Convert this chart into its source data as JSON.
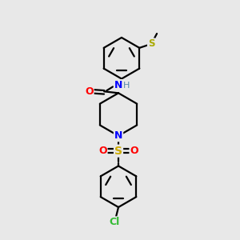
{
  "background_color": "#e8e8e8",
  "bond_color": "#000000",
  "atom_colors": {
    "N": "#0000ff",
    "N_H": "#5588aa",
    "O": "#ff0000",
    "S_sulfonyl": "#ccaa00",
    "S_thioether": "#aaaa00",
    "Cl": "#33bb33",
    "H": "#5588aa",
    "C": "#000000"
  },
  "figsize": [
    3.0,
    3.0
  ],
  "dpi": 100
}
